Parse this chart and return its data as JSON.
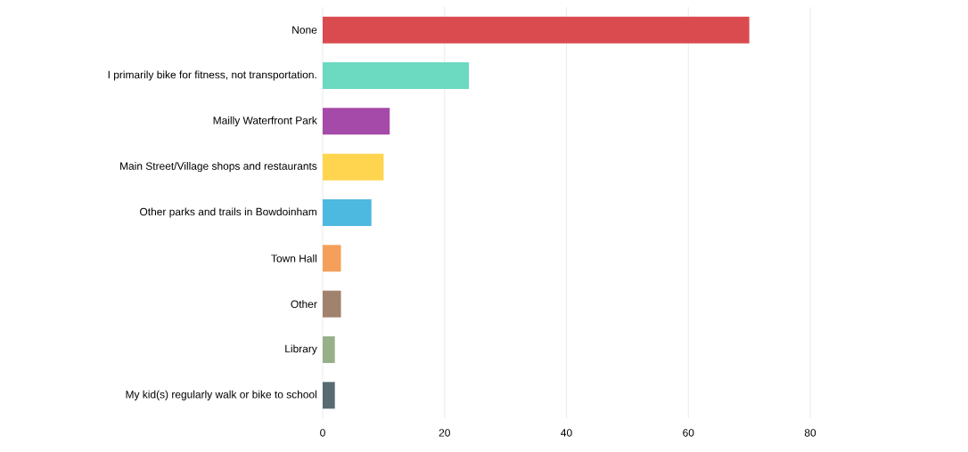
{
  "chart_data": {
    "type": "bar",
    "orientation": "horizontal",
    "categories": [
      "None",
      "I primarily bike for fitness, not transportation.",
      "Mailly Waterfront Park",
      "Main Street/Village shops and restaurants",
      "Other parks and trails in Bowdoinham",
      "Town Hall",
      "Other",
      "Library",
      "My kid(s) regularly walk or bike to school"
    ],
    "values": [
      70,
      24,
      11,
      10,
      8,
      3,
      3,
      2,
      2
    ],
    "colors": [
      "#d94b4f",
      "#6cd9c1",
      "#a54aa8",
      "#ffd54f",
      "#4db8e0",
      "#f5a05a",
      "#a0826d",
      "#98b089",
      "#566b72"
    ],
    "xlim": [
      0,
      80
    ],
    "xticks": [
      0,
      20,
      40,
      60,
      80
    ],
    "grid": "x"
  }
}
